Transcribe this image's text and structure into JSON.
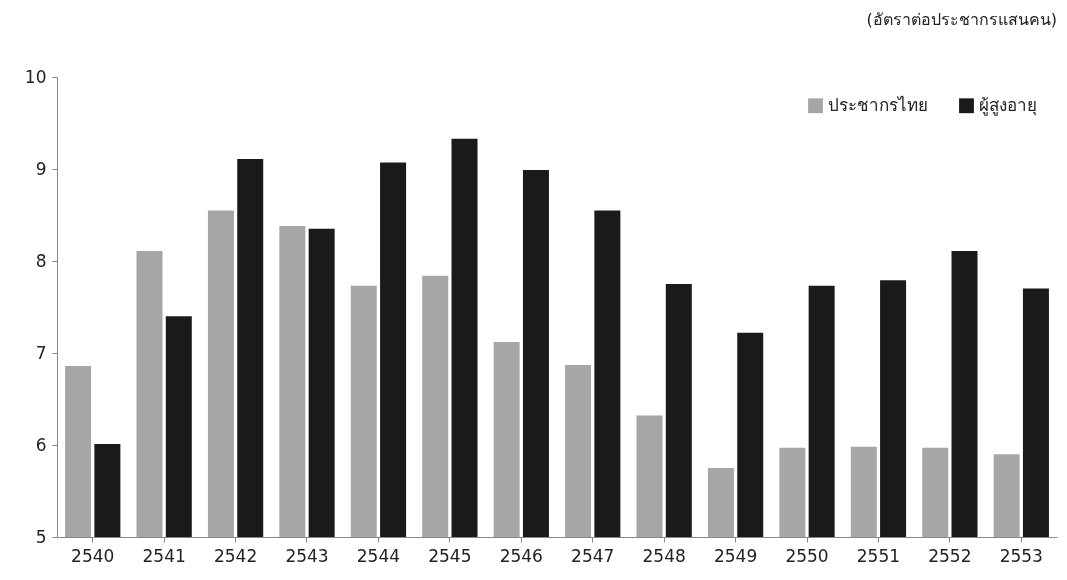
{
  "chart_data": {
    "type": "bar",
    "annotations": [
      "(อัตราต่อประชากรแสนคน)"
    ],
    "categories": [
      "2540",
      "2541",
      "2542",
      "2543",
      "2544",
      "2545",
      "2546",
      "2547",
      "2548",
      "2549",
      "2550",
      "2551",
      "2552",
      "2553"
    ],
    "series": [
      {
        "name": "ประชากรไทย",
        "color": "#a6a6a6",
        "values": [
          6.86,
          8.11,
          8.55,
          8.38,
          7.73,
          7.84,
          7.12,
          6.87,
          6.32,
          5.75,
          5.97,
          5.98,
          5.97,
          5.9
        ]
      },
      {
        "name": "ผู้สูงอายุ",
        "color": "#1a1a1a",
        "values": [
          6.01,
          7.4,
          9.11,
          8.35,
          9.07,
          9.33,
          8.99,
          8.55,
          7.75,
          7.22,
          7.73,
          7.79,
          8.11,
          7.7
        ]
      }
    ],
    "ylim": [
      5,
      10
    ],
    "yticks": [
      5,
      6,
      7,
      8,
      9,
      10
    ],
    "legend": "top right"
  }
}
